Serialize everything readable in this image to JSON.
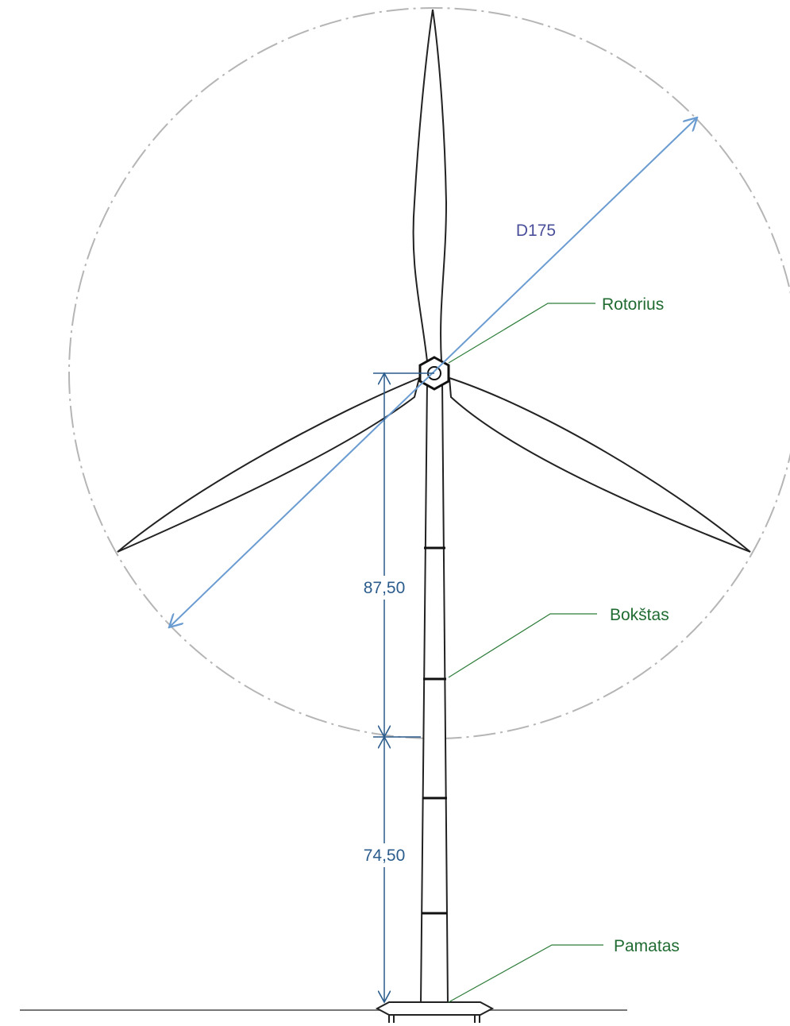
{
  "dimensions": {
    "rotor_diameter": "D175",
    "hub_height": "87,50",
    "lower_height": "74,50"
  },
  "callouts": [
    {
      "label": "Rotorius"
    },
    {
      "label": "Bokštas"
    },
    {
      "label": "Pamatas"
    }
  ]
}
